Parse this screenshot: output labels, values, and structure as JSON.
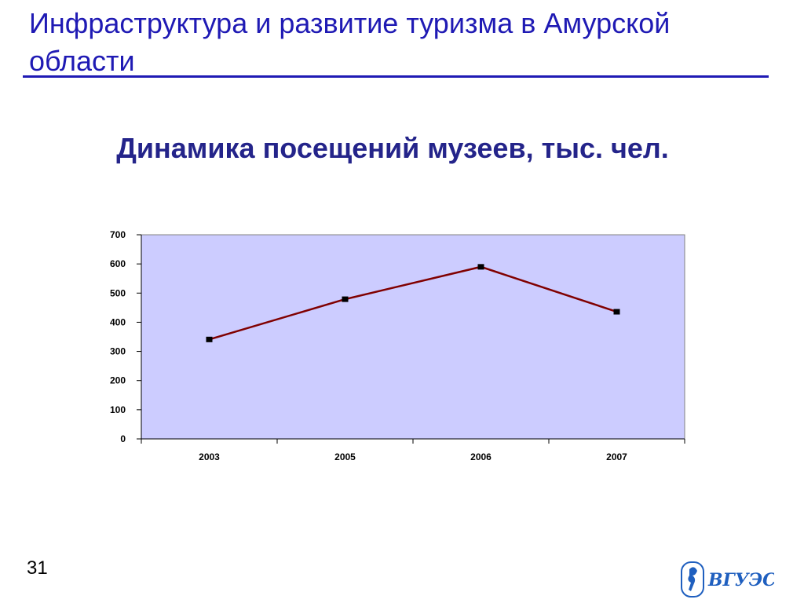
{
  "slide": {
    "title": "Инфраструктура и развитие туризма в Амурской области",
    "number": "31"
  },
  "logo": {
    "text": "ВГУЭС"
  },
  "colors": {
    "title": "#1f1ab4",
    "heading": "#24248a",
    "plot_bg": "#ccccff",
    "line": "#800000",
    "marker": "#000000"
  },
  "chart_data": {
    "type": "line",
    "title": "Динамика посещений музеев, тыс. чел.",
    "categories": [
      "2003",
      "2005",
      "2006",
      "2007"
    ],
    "series": [
      {
        "values": [
          341,
          479,
          590,
          436
        ]
      }
    ],
    "ylim": [
      0,
      700
    ],
    "yticks": [
      0,
      100,
      200,
      300,
      400,
      500,
      600,
      700
    ],
    "grid": false,
    "legend": "none"
  }
}
